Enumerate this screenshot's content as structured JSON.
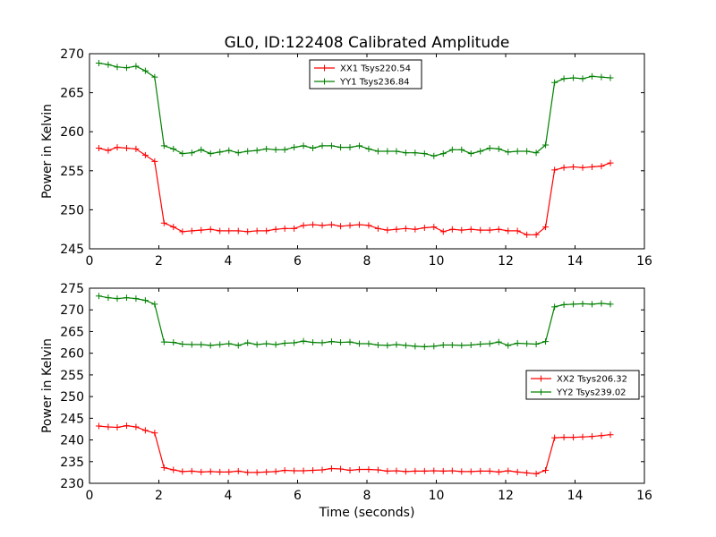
{
  "figure": {
    "title": "GL0, ID:122408 Calibrated Amplitude"
  },
  "chart_data": [
    {
      "type": "line",
      "title": "GL0, ID:122408 Calibrated Amplitude",
      "xlabel": "",
      "ylabel": "Power in Kelvin",
      "xlim": [
        0,
        16
      ],
      "ylim": [
        245,
        270
      ],
      "xticks": [
        0,
        2,
        4,
        6,
        8,
        10,
        12,
        14,
        16
      ],
      "yticks": [
        245,
        250,
        255,
        260,
        265,
        270
      ],
      "grid": false,
      "legend_position": "upper-center",
      "x": [
        0.27,
        0.54,
        0.8,
        1.07,
        1.34,
        1.61,
        1.88,
        2.15,
        2.42,
        2.68,
        2.95,
        3.22,
        3.49,
        3.76,
        4.02,
        4.29,
        4.56,
        4.83,
        5.1,
        5.37,
        5.63,
        5.9,
        6.17,
        6.44,
        6.71,
        6.98,
        7.24,
        7.51,
        7.78,
        8.05,
        8.32,
        8.59,
        8.85,
        9.12,
        9.39,
        9.66,
        9.93,
        10.2,
        10.46,
        10.73,
        11.0,
        11.27,
        11.54,
        11.8,
        12.07,
        12.34,
        12.61,
        12.88,
        13.15,
        13.41,
        13.68,
        13.95,
        14.22,
        14.49,
        14.76,
        15.02
      ],
      "series": [
        {
          "name": "XX1 Tsys220.54",
          "color": "#ff0000",
          "values": [
            257.9,
            257.6,
            258.0,
            257.9,
            257.8,
            257.0,
            256.2,
            248.3,
            247.8,
            247.2,
            247.3,
            247.4,
            247.5,
            247.3,
            247.3,
            247.3,
            247.2,
            247.3,
            247.3,
            247.5,
            247.6,
            247.6,
            248.0,
            248.1,
            248.0,
            248.1,
            247.9,
            248.0,
            248.1,
            248.0,
            247.6,
            247.4,
            247.5,
            247.6,
            247.5,
            247.7,
            247.8,
            247.2,
            247.5,
            247.4,
            247.5,
            247.4,
            247.4,
            247.5,
            247.3,
            247.3,
            246.8,
            246.8,
            247.8,
            255.1,
            255.4,
            255.5,
            255.4,
            255.5,
            255.6,
            256.0
          ]
        },
        {
          "name": "YY1 Tsys236.84",
          "color": "#008000",
          "values": [
            268.8,
            268.6,
            268.3,
            268.2,
            268.4,
            267.8,
            267.0,
            258.2,
            257.8,
            257.2,
            257.3,
            257.7,
            257.2,
            257.4,
            257.6,
            257.3,
            257.5,
            257.6,
            257.8,
            257.7,
            257.7,
            258.0,
            258.2,
            257.9,
            258.2,
            258.2,
            258.0,
            258.0,
            258.2,
            257.8,
            257.5,
            257.5,
            257.5,
            257.3,
            257.3,
            257.2,
            256.9,
            257.2,
            257.7,
            257.7,
            257.2,
            257.5,
            257.9,
            257.8,
            257.4,
            257.5,
            257.5,
            257.3,
            258.3,
            266.3,
            266.8,
            266.9,
            266.8,
            267.1,
            267.0,
            266.9
          ]
        }
      ]
    },
    {
      "type": "line",
      "title": "",
      "xlabel": "Time (seconds)",
      "ylabel": "Power in Kelvin",
      "xlim": [
        0,
        16
      ],
      "ylim": [
        230,
        275
      ],
      "xticks": [
        0,
        2,
        4,
        6,
        8,
        10,
        12,
        14,
        16
      ],
      "yticks": [
        230,
        235,
        240,
        245,
        250,
        255,
        260,
        265,
        270,
        275
      ],
      "grid": false,
      "legend_position": "center-right",
      "x": [
        0.27,
        0.54,
        0.8,
        1.07,
        1.34,
        1.61,
        1.88,
        2.15,
        2.42,
        2.68,
        2.95,
        3.22,
        3.49,
        3.76,
        4.02,
        4.29,
        4.56,
        4.83,
        5.1,
        5.37,
        5.63,
        5.9,
        6.17,
        6.44,
        6.71,
        6.98,
        7.24,
        7.51,
        7.78,
        8.05,
        8.32,
        8.59,
        8.85,
        9.12,
        9.39,
        9.66,
        9.93,
        10.2,
        10.46,
        10.73,
        11.0,
        11.27,
        11.54,
        11.8,
        12.07,
        12.34,
        12.61,
        12.88,
        13.15,
        13.41,
        13.68,
        13.95,
        14.22,
        14.49,
        14.76,
        15.02
      ],
      "series": [
        {
          "name": "XX2 Tsys206.32",
          "color": "#ff0000",
          "values": [
            243.2,
            243.0,
            242.9,
            243.3,
            243.0,
            242.2,
            241.6,
            233.6,
            233.1,
            232.7,
            232.8,
            232.6,
            232.7,
            232.6,
            232.6,
            232.8,
            232.5,
            232.5,
            232.6,
            232.7,
            233.0,
            232.9,
            232.9,
            233.0,
            233.1,
            233.4,
            233.3,
            233.0,
            233.2,
            233.2,
            233.1,
            232.8,
            232.9,
            232.7,
            232.8,
            232.8,
            232.9,
            232.8,
            232.9,
            232.7,
            232.7,
            232.8,
            232.8,
            232.6,
            232.9,
            232.6,
            232.4,
            232.2,
            233.0,
            240.5,
            240.6,
            240.6,
            240.7,
            240.8,
            241.0,
            241.2
          ]
        },
        {
          "name": "YY2 Tsys239.02",
          "color": "#008000",
          "values": [
            273.2,
            272.8,
            272.6,
            272.8,
            272.6,
            272.2,
            271.3,
            262.6,
            262.5,
            262.1,
            262.0,
            262.0,
            261.8,
            262.0,
            262.2,
            261.8,
            262.4,
            262.0,
            262.2,
            262.0,
            262.3,
            262.4,
            262.8,
            262.5,
            262.4,
            262.7,
            262.5,
            262.6,
            262.2,
            262.2,
            261.9,
            261.8,
            262.0,
            261.8,
            261.6,
            261.5,
            261.6,
            261.9,
            261.9,
            261.8,
            261.9,
            262.1,
            262.2,
            262.6,
            261.8,
            262.3,
            262.2,
            262.1,
            262.7,
            270.7,
            271.2,
            271.3,
            271.4,
            271.3,
            271.5,
            271.3
          ]
        }
      ]
    }
  ]
}
